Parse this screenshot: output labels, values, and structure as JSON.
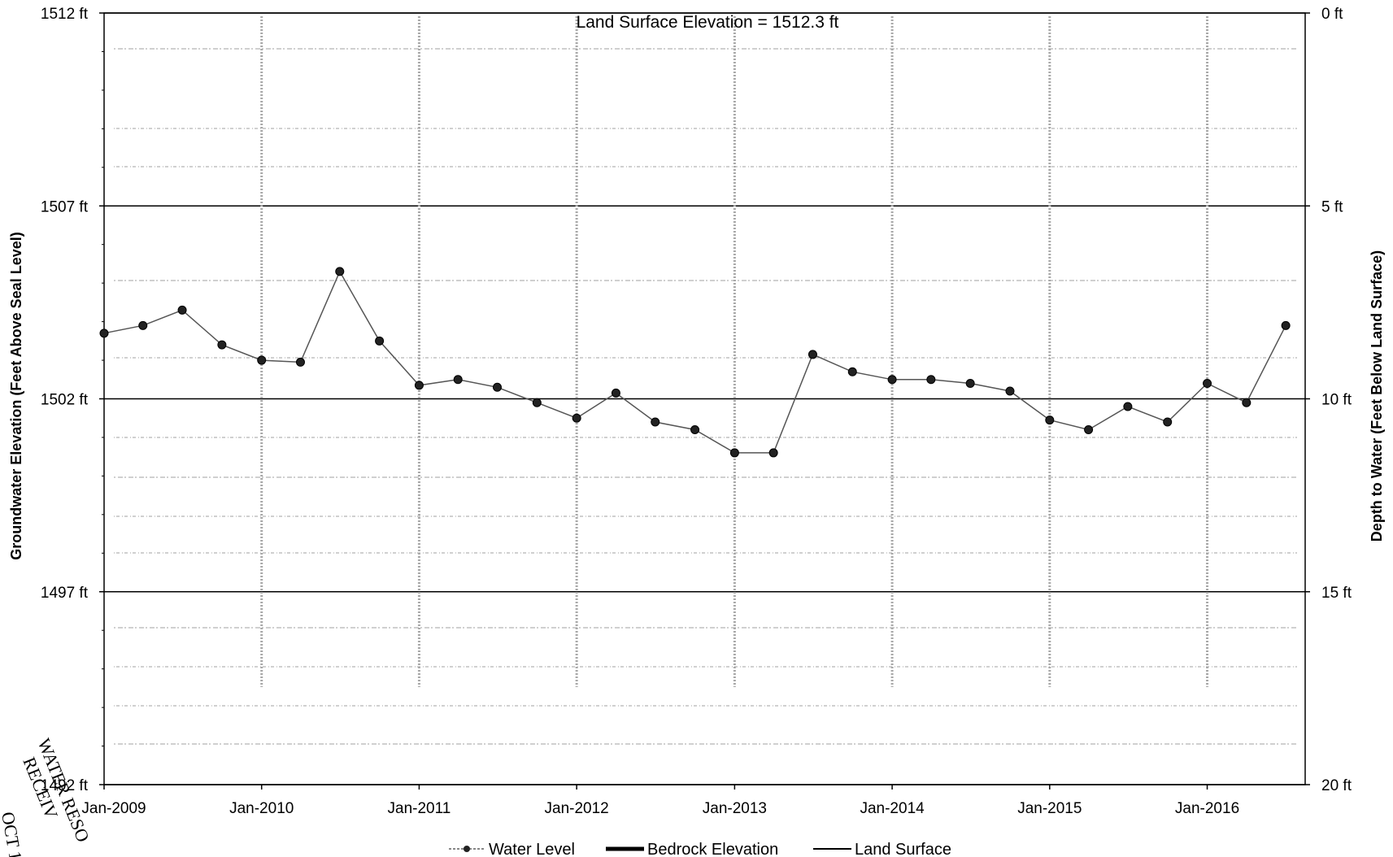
{
  "stamp": {
    "line1": "WATER RESO",
    "line2": "RECEIV",
    "line3": "OCT 1"
  },
  "chart_data": {
    "type": "line",
    "annotation": "Land Surface Elevation = 1512.3 ft",
    "land_surface_elevation": 1512.3,
    "ylabel_left": "Groundwater Elevation (Feet Above Seal Level)",
    "ylabel_right": "Depth to Water (Feet Below Land Surface)",
    "xlim": [
      "2009-01-01",
      "2016-08-15"
    ],
    "ylim": [
      1492,
      1512
    ],
    "y_ticks": [
      1492,
      1497,
      1502,
      1507,
      1512
    ],
    "y_tick_labels": [
      "1492 ft",
      "1497 ft",
      "1502 ft",
      "1507 ft",
      "1512 ft"
    ],
    "y2_ticks": [
      0,
      5,
      10,
      15,
      20
    ],
    "y2_tick_labels": [
      "0 ft",
      "5 ft",
      "10 ft",
      "15 ft",
      "20 ft"
    ],
    "x_ticks": [
      "2009-01-01",
      "2010-01-01",
      "2011-01-01",
      "2012-01-01",
      "2013-01-01",
      "2014-01-01",
      "2015-01-01",
      "2016-01-01"
    ],
    "x_tick_labels": [
      "Jan-2009",
      "Jan-2010",
      "Jan-2011",
      "Jan-2012",
      "Jan-2013",
      "Jan-2014",
      "Jan-2015",
      "Jan-2016"
    ],
    "grid": "horizontal",
    "legend_position": "bottom",
    "legend": [
      "Water Level",
      "Bedrock Elevation",
      "Land Surface"
    ],
    "series": [
      {
        "name": "Water Level",
        "color": "#333333",
        "marker": "circle",
        "points": [
          {
            "x": "2009-01-01",
            "y": 1503.7
          },
          {
            "x": "2009-04-01",
            "y": 1503.9
          },
          {
            "x": "2009-07-01",
            "y": 1504.3
          },
          {
            "x": "2009-10-01",
            "y": 1503.4
          },
          {
            "x": "2010-01-01",
            "y": 1503.0
          },
          {
            "x": "2010-04-01",
            "y": 1502.95
          },
          {
            "x": "2010-07-01",
            "y": 1505.3
          },
          {
            "x": "2010-10-01",
            "y": 1503.5
          },
          {
            "x": "2011-01-01",
            "y": 1502.35
          },
          {
            "x": "2011-04-01",
            "y": 1502.5
          },
          {
            "x": "2011-07-01",
            "y": 1502.3
          },
          {
            "x": "2011-10-01",
            "y": 1501.9
          },
          {
            "x": "2012-01-01",
            "y": 1501.5
          },
          {
            "x": "2012-04-01",
            "y": 1502.15
          },
          {
            "x": "2012-07-01",
            "y": 1501.4
          },
          {
            "x": "2012-10-01",
            "y": 1501.2
          },
          {
            "x": "2013-01-01",
            "y": 1500.6
          },
          {
            "x": "2013-04-01",
            "y": 1500.6
          },
          {
            "x": "2013-07-01",
            "y": 1503.15
          },
          {
            "x": "2013-10-01",
            "y": 1502.7
          },
          {
            "x": "2014-01-01",
            "y": 1502.5
          },
          {
            "x": "2014-04-01",
            "y": 1502.5
          },
          {
            "x": "2014-07-01",
            "y": 1502.4
          },
          {
            "x": "2014-10-01",
            "y": 1502.2
          },
          {
            "x": "2015-01-01",
            "y": 1501.45
          },
          {
            "x": "2015-04-01",
            "y": 1501.2
          },
          {
            "x": "2015-07-01",
            "y": 1501.8
          },
          {
            "x": "2015-10-01",
            "y": 1501.4
          },
          {
            "x": "2016-01-01",
            "y": 1502.4
          },
          {
            "x": "2016-04-01",
            "y": 1501.9
          },
          {
            "x": "2016-07-01",
            "y": 1503.9
          }
        ]
      }
    ]
  }
}
